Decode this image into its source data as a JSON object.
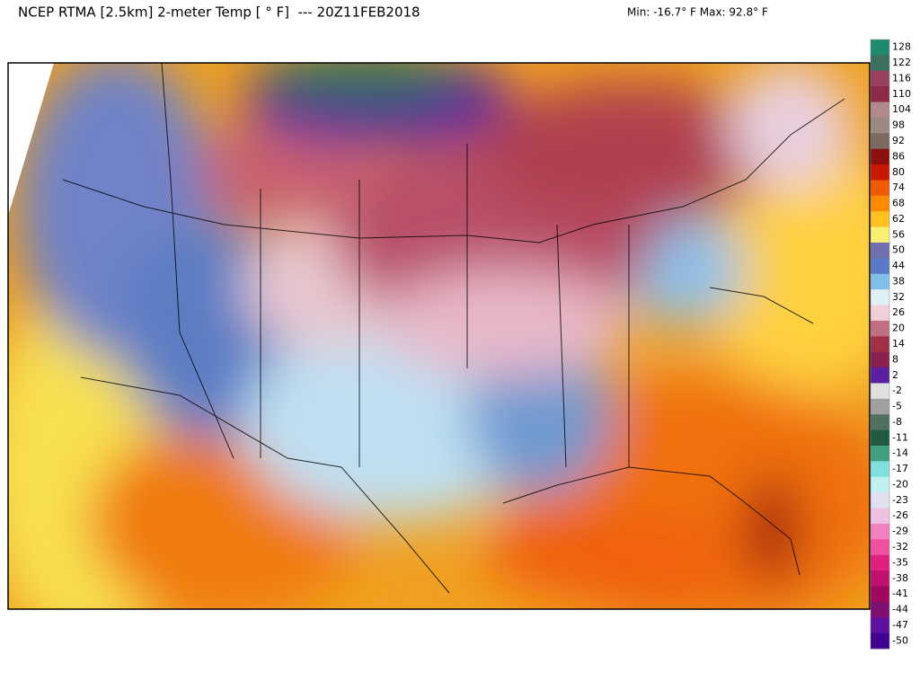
{
  "header": {
    "title": "NCEP RTMA [2.5km] 2-meter Temp [ ° F]  --- 20Z11FEB2018",
    "range": "Min: -16.7° F Max: 92.8° F"
  },
  "colorbar": {
    "labels": [
      128,
      122,
      116,
      110,
      104,
      98,
      92,
      86,
      80,
      74,
      68,
      62,
      56,
      50,
      44,
      38,
      32,
      26,
      20,
      14,
      8,
      2,
      -2,
      -5,
      -8,
      -11,
      -14,
      -17,
      -20,
      -23,
      -26,
      -29,
      -32,
      -35,
      -38,
      -41,
      -44,
      -47,
      -50
    ],
    "colors": [
      "#1f8a70",
      "#3b6f5e",
      "#9c4060",
      "#8c2a48",
      "#b08a8a",
      "#9a8a80",
      "#7a6a60",
      "#8c1010",
      "#c81a00",
      "#f05a00",
      "#ff8a00",
      "#ffc020",
      "#f8f070",
      "#7070b0",
      "#5a7ac8",
      "#80c0e8",
      "#e0f0f8",
      "#f0d0d8",
      "#c07080",
      "#a03048",
      "#8a2050",
      "#5a20a0",
      "#e0e0e0",
      "#a0a0a0",
      "#507060",
      "#205a40",
      "#40a080",
      "#80e0e0",
      "#c0f0f0",
      "#e0e0f0",
      "#f0c0e0",
      "#f080c0",
      "#f050a0",
      "#e02080",
      "#c01070",
      "#a00860",
      "#801070",
      "#6010a0",
      "#400090"
    ]
  }
}
